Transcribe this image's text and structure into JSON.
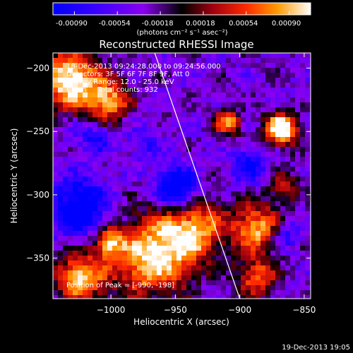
{
  "colorbar": {
    "tick_labels": [
      "-0.00090",
      "-0.00054",
      "-0.00018",
      "0.00018",
      "0.00054",
      "0.00090"
    ],
    "units_label": "(photons cm⁻² s⁻¹ asec⁻²)",
    "range": [
      -0.0009,
      0.0009
    ]
  },
  "chart_data": {
    "type": "heatmap",
    "title": "Reconstructed RHESSI Image",
    "xlabel": "Heliocentric X (arcsec)",
    "ylabel": "Heliocentric Y (arcsec)",
    "xlim": [
      -1045,
      -845
    ],
    "ylim": [
      -382,
      -188
    ],
    "x_ticks": [
      -1000,
      -950,
      -900,
      -850
    ],
    "y_ticks": [
      -200,
      -250,
      -300,
      -350
    ],
    "annotations": [
      "18-Dec-2013 09:24:28.000 to 09:24:56.000",
      "Detectors: 3F 5F 6F 7F 8F 9F, Att 0",
      "Energy Range: 12.0 - 25.0 keV",
      "Clean     Total counts: 932"
    ],
    "peak_label": "Position of Peak = [-990, -198]",
    "peak_position": [
      -990,
      -198
    ],
    "limb_line": {
      "x": [
        -966,
        -900
      ],
      "y": [
        -188,
        -382
      ]
    },
    "grid": false
  },
  "footer": {
    "timestamp": "19-Dec-2013 19:05"
  }
}
